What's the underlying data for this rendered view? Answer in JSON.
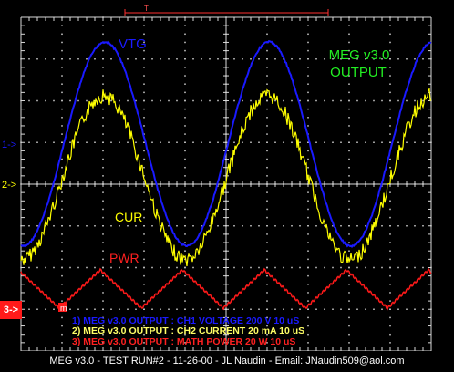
{
  "chart_data": {
    "type": "line",
    "title": "MEG v3.0 OUTPUT",
    "x_divisions": 10,
    "y_divisions": 8,
    "series": [
      {
        "name": "VTG",
        "channel": "1",
        "color": "#1a1aff"
      },
      {
        "name": "CUR",
        "channel": "2",
        "color": "#ffff00"
      },
      {
        "name": "PWR",
        "channel": "3",
        "color": "#ff1a1a"
      }
    ],
    "channel_markers": [
      {
        "label": "1->",
        "color": "#1a1aff"
      },
      {
        "label": "2->",
        "color": "#ffff00"
      },
      {
        "label": "3->",
        "color": "#ffffff"
      }
    ],
    "trigger_marker": "T",
    "math_marker": "m",
    "legend_lines": [
      {
        "text": "1) MEG v3.0 OUTPUT : CH1 VOLTAGE 200 V 10 uS",
        "color": "#1a1aff"
      },
      {
        "text": "2) MEG v3.0 OUTPUT : CH2 CURRENT 20 mA 10 uS",
        "color": "#ffff66"
      },
      {
        "text": "3) MEG v3.0 OUTPUT : MATH POWER 20 W 10 uS",
        "color": "#ff2020"
      }
    ]
  },
  "footer": "MEG v3.0 - TEST RUN#2 - 11-26-00 - JL Naudin - Email: JNaudin509@aol.com"
}
